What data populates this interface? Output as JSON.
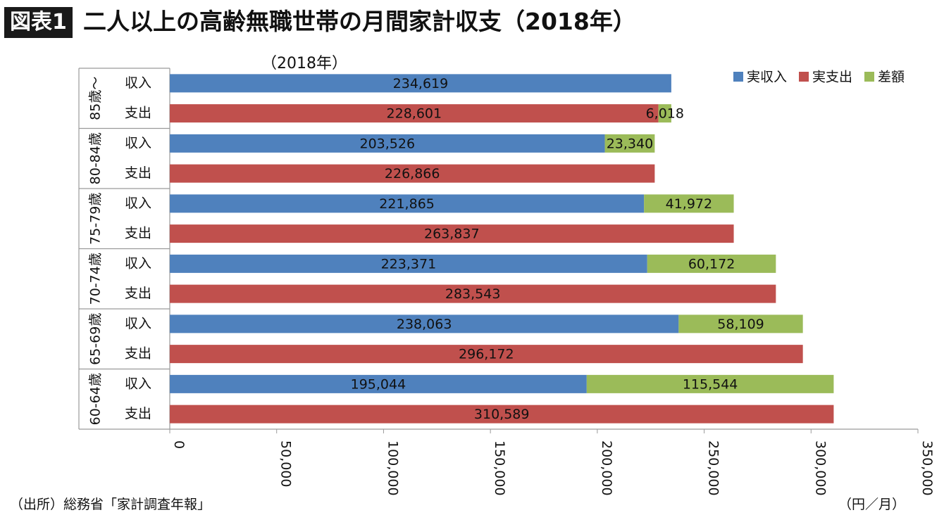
{
  "header": {
    "badge": "図表1",
    "title": "二人以上の高齢無職世帯の月間家計収支（2018年）"
  },
  "footer": {
    "source": "（出所）総務省「家計調査年報」",
    "unit": "（円／月）"
  },
  "chart_data": {
    "type": "bar",
    "orientation": "horizontal",
    "stacked": true,
    "subtitle": "（2018年）",
    "xlim": [
      0,
      350000
    ],
    "x_ticks": [
      "0",
      "50,000",
      "100,000",
      "150,000",
      "200,000",
      "250,000",
      "300,000",
      "350,000"
    ],
    "x_tick_values": [
      0,
      50000,
      100000,
      150000,
      200000,
      250000,
      300000,
      350000
    ],
    "legend_position": "top-right",
    "legend": [
      {
        "name": "実収入",
        "color": "#4f81bd"
      },
      {
        "name": "実支出",
        "color": "#c0504d"
      },
      {
        "name": "差額",
        "color": "#9bbb59"
      }
    ],
    "groups": [
      {
        "label": "85歳～",
        "rows": [
          {
            "label": "収入",
            "segments": [
              {
                "series": "実収入",
                "value": 234619,
                "text": "234,619"
              }
            ]
          },
          {
            "label": "支出",
            "segments": [
              {
                "series": "実支出",
                "value": 228601,
                "text": "228,601"
              },
              {
                "series": "差額",
                "value": 6018,
                "text": "6,018"
              }
            ]
          }
        ]
      },
      {
        "label": "80-84歳",
        "rows": [
          {
            "label": "収入",
            "segments": [
              {
                "series": "実収入",
                "value": 203526,
                "text": "203,526"
              },
              {
                "series": "差額",
                "value": 23340,
                "text": "23,340"
              }
            ]
          },
          {
            "label": "支出",
            "segments": [
              {
                "series": "実支出",
                "value": 226866,
                "text": "226,866"
              }
            ]
          }
        ]
      },
      {
        "label": "75-79歳",
        "rows": [
          {
            "label": "収入",
            "segments": [
              {
                "series": "実収入",
                "value": 221865,
                "text": "221,865"
              },
              {
                "series": "差額",
                "value": 41972,
                "text": "41,972"
              }
            ]
          },
          {
            "label": "支出",
            "segments": [
              {
                "series": "実支出",
                "value": 263837,
                "text": "263,837"
              }
            ]
          }
        ]
      },
      {
        "label": "70-74歳",
        "rows": [
          {
            "label": "収入",
            "segments": [
              {
                "series": "実収入",
                "value": 223371,
                "text": "223,371"
              },
              {
                "series": "差額",
                "value": 60172,
                "text": "60,172"
              }
            ]
          },
          {
            "label": "支出",
            "segments": [
              {
                "series": "実支出",
                "value": 283543,
                "text": "283,543"
              }
            ]
          }
        ]
      },
      {
        "label": "65-69歳",
        "rows": [
          {
            "label": "収入",
            "segments": [
              {
                "series": "実収入",
                "value": 238063,
                "text": "238,063"
              },
              {
                "series": "差額",
                "value": 58109,
                "text": "58,109"
              }
            ]
          },
          {
            "label": "支出",
            "segments": [
              {
                "series": "実支出",
                "value": 296172,
                "text": "296,172"
              }
            ]
          }
        ]
      },
      {
        "label": "60-64歳",
        "rows": [
          {
            "label": "収入",
            "segments": [
              {
                "series": "実収入",
                "value": 195044,
                "text": "195,044"
              },
              {
                "series": "差額",
                "value": 115544,
                "text": "115,544"
              }
            ]
          },
          {
            "label": "支出",
            "segments": [
              {
                "series": "実支出",
                "value": 310589,
                "text": "310,589"
              }
            ]
          }
        ]
      }
    ]
  }
}
